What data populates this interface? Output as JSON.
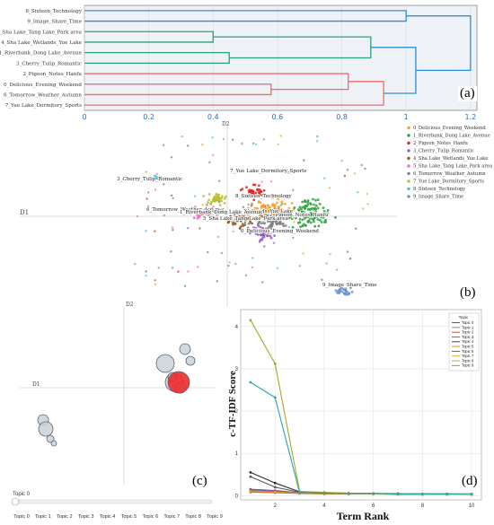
{
  "panels": {
    "a": {
      "label": "(a)"
    },
    "b": {
      "label": "(b)"
    },
    "c": {
      "label": "(c)"
    },
    "d": {
      "label": "(d)"
    }
  },
  "chart_data": [
    {
      "type": "dendrogram",
      "panel": "a",
      "leaves": [
        "8_Sixteen_Technology",
        "9_Image_Share_Time",
        "5_Sha Lake_Tang Lake_Park area",
        "4_Sha Lake_Wetlands_Yue Lake",
        "1_Riverbank_Dong Lake_Avenue",
        "3_Cherry_Tulip_Romantic",
        "2_Pigeon_Notes_Hanfu",
        "0_Delicious_Evening_Weekend",
        "6_Tomorrow_Weather_Autumn",
        "7_Yue Lake_Dormitory_Sports"
      ],
      "merges": [
        {
          "a": "leaf:2",
          "b": "leaf:3",
          "height": 0.4,
          "color": "#2ca07a"
        },
        {
          "a": "leaf:4",
          "b": "leaf:5",
          "height": 0.45,
          "color": "#2ca07a"
        },
        {
          "a": "node:0",
          "b": "node:1",
          "height": 0.89,
          "color": "#2ca07a"
        },
        {
          "a": "leaf:7",
          "b": "leaf:8",
          "height": 0.58,
          "color": "#f06a6a"
        },
        {
          "a": "leaf:6",
          "b": "node:3",
          "height": 0.82,
          "color": "#f06a6a"
        },
        {
          "a": "node:4",
          "b": "leaf:9",
          "height": 0.93,
          "color": "#f06a6a"
        },
        {
          "a": "leaf:0",
          "b": "leaf:1",
          "height": 1.0,
          "color": "#2b8fd6"
        },
        {
          "a": "node:2",
          "b": "node:5",
          "height": 1.03,
          "color": "#2b8fd6"
        },
        {
          "a": "node:6",
          "b": "node:7",
          "height": 1.2,
          "color": "#2b8fd6"
        }
      ],
      "xticks": [
        "0",
        "0.2",
        "0.4",
        "0.6",
        "0.8",
        "1",
        "1.2"
      ],
      "xlim": [
        0,
        1.22
      ]
    },
    {
      "type": "scatter",
      "panel": "b",
      "xlabel": "D1",
      "ylabel": "D2",
      "legend": [
        {
          "name": "0_Delicious_Evening_Weekend",
          "color": "#f0a030"
        },
        {
          "name": "1_Riverbank_Dong Lake_Avenue",
          "color": "#2a9d3a"
        },
        {
          "name": "2_Pigeon_Notes_Hanfu",
          "color": "#e02020"
        },
        {
          "name": "3_Cherry_Tulip_Romantic",
          "color": "#8a5cc8"
        },
        {
          "name": "4_Sha Lake_Wetlands_Yue Lake",
          "color": "#8b5a2b"
        },
        {
          "name": "5_Sha Lake_Tang Lake_Park area",
          "color": "#f06ab8"
        },
        {
          "name": "6_Tomorrow_Weather_Autumn",
          "color": "#7f7f7f"
        },
        {
          "name": "7_Yue Lake_Dormitory_Sports",
          "color": "#b8bd2a"
        },
        {
          "name": "8_Sixteen_Technology",
          "color": "#38c6d9"
        },
        {
          "name": "9_Image_Share_Time",
          "color": "#6a8fd0"
        }
      ],
      "cluster_labels": [
        "8_Sixteen_Technology",
        "2_Pigeon_Notes_Hanfu",
        "7_Yue Lake_Dormitory_Sports",
        "0_Delicious_Evening_Weekend",
        "5_Sha Lake_Tang Lake_Park area",
        "6_Tomorrow_Weather_Autumn",
        "4_Sha Lake_Wetlands_Yue Lake",
        "1_Riverbank_Dong Lake_Avenue",
        "3_Cherry_Tulip_Romantic",
        "9_Image_Share_Time"
      ]
    },
    {
      "type": "bubble",
      "panel": "c",
      "xlabel": "D1",
      "ylabel": "D2",
      "slider_label": "Topic 0",
      "slider_ticks": [
        "Topic 0",
        "Topic 1",
        "Topic 2",
        "Topic 3",
        "Topic 4",
        "Topic 5",
        "Topic 6",
        "Topic 7",
        "Topic 8",
        "Topic 9"
      ],
      "highlighted": "Topic 0"
    },
    {
      "type": "line",
      "panel": "d",
      "title": "",
      "xlabel": "Term Rank",
      "ylabel": "c-TF-IDF Score",
      "legend_title": "Topic",
      "x": [
        1,
        2,
        3,
        4,
        5,
        6,
        7,
        8,
        9,
        10
      ],
      "xlim": [
        0.6,
        10.4
      ],
      "ylim": [
        -0.1,
        4.4
      ],
      "xticks": [
        2,
        4,
        6,
        8,
        10
      ],
      "yticks": [
        0,
        1,
        2,
        3,
        4
      ],
      "series": [
        {
          "name": "Topic 0",
          "color": "#1f4e8c",
          "values": [
            0.12,
            0.1,
            0.06,
            0.05,
            0.05,
            0.04,
            0.04,
            0.04,
            0.03,
            0.03
          ]
        },
        {
          "name": "Topic 1",
          "color": "#7a7a7a",
          "values": [
            0.08,
            0.07,
            0.05,
            0.04,
            0.04,
            0.04,
            0.03,
            0.03,
            0.03,
            0.03
          ]
        },
        {
          "name": "Topic 2",
          "color": "#c0392b",
          "values": [
            0.1,
            0.08,
            0.06,
            0.05,
            0.04,
            0.04,
            0.04,
            0.03,
            0.03,
            0.03
          ]
        },
        {
          "name": "Topic 3",
          "color": "#8e44ad",
          "values": [
            0.15,
            0.12,
            0.07,
            0.06,
            0.05,
            0.05,
            0.04,
            0.04,
            0.04,
            0.03
          ]
        },
        {
          "name": "Topic 4",
          "color": "#2c2c2c",
          "values": [
            0.55,
            0.3,
            0.09,
            0.07,
            0.06,
            0.05,
            0.05,
            0.04,
            0.04,
            0.04
          ]
        },
        {
          "name": "Topic 5",
          "color": "#e67e22",
          "values": [
            0.09,
            0.08,
            0.06,
            0.05,
            0.04,
            0.04,
            0.04,
            0.03,
            0.03,
            0.03
          ]
        },
        {
          "name": "Topic 6",
          "color": "#555555",
          "values": [
            0.45,
            0.2,
            0.08,
            0.06,
            0.05,
            0.05,
            0.04,
            0.04,
            0.04,
            0.04
          ]
        },
        {
          "name": "Topic 7",
          "color": "#d4a017",
          "values": [
            0.11,
            0.09,
            0.06,
            0.05,
            0.05,
            0.04,
            0.04,
            0.04,
            0.03,
            0.03
          ]
        },
        {
          "name": "Topic 8",
          "color": "#a3a82a",
          "values": [
            4.15,
            3.12,
            0.1,
            0.08,
            0.06,
            0.05,
            0.05,
            0.04,
            0.04,
            0.04
          ]
        },
        {
          "name": "Topic 9",
          "color": "#2aa6a6",
          "values": [
            2.68,
            2.32,
            0.07,
            0.06,
            0.05,
            0.05,
            0.04,
            0.04,
            0.04,
            0.03
          ]
        }
      ]
    }
  ]
}
